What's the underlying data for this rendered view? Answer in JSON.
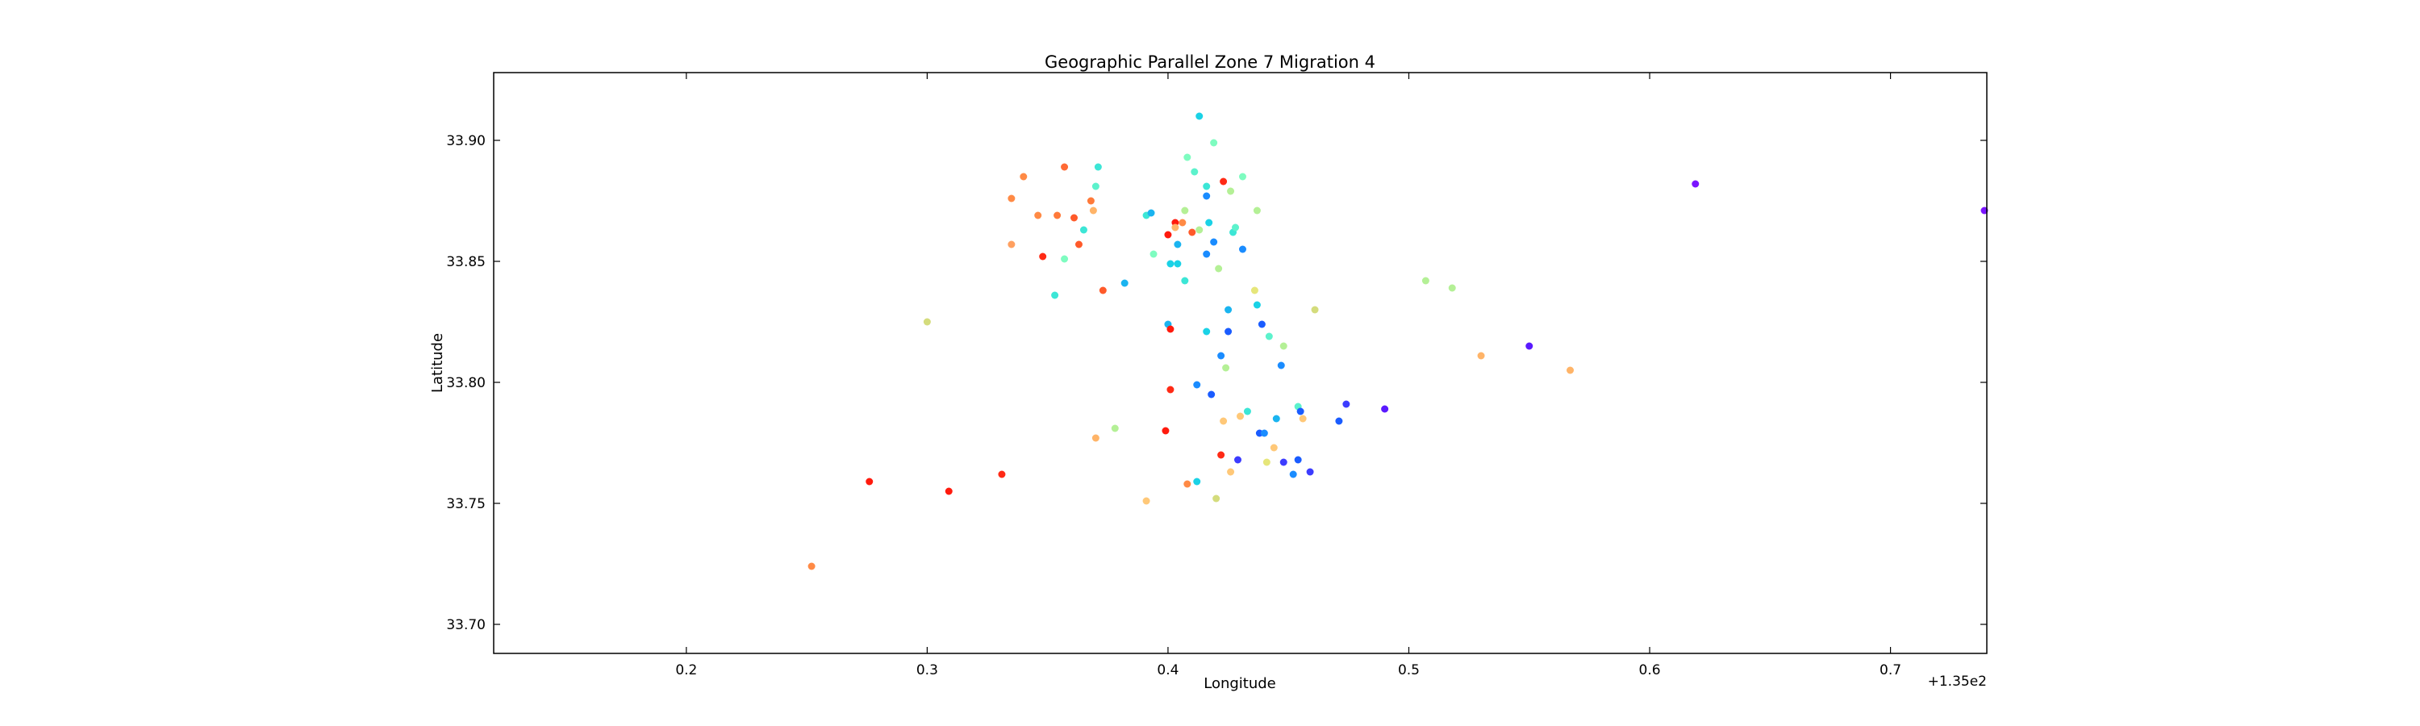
{
  "chart_data": {
    "type": "scatter",
    "title": "Geographic Parallel Zone 7 Migration 4",
    "xlabel": "Longitude",
    "ylabel": "Latitude",
    "x_offset_label": "+1.35e2",
    "xlim": [
      135.12,
      135.74
    ],
    "ylim": [
      33.688,
      33.928
    ],
    "x_ticks": [
      0.2,
      0.3,
      0.4,
      0.5,
      0.6,
      0.7
    ],
    "x_tick_labels": [
      "0.2",
      "0.3",
      "0.4",
      "0.5",
      "0.6",
      "0.7"
    ],
    "y_ticks": [
      33.7,
      33.75,
      33.8,
      33.85,
      33.9
    ],
    "y_tick_labels": [
      "33.70",
      "33.75",
      "33.80",
      "33.85",
      "33.90"
    ],
    "grid": false,
    "colormap": "rainbow",
    "points": [
      {
        "x": 135.252,
        "y": 33.724,
        "color": "#ff8a45"
      },
      {
        "x": 135.276,
        "y": 33.759,
        "color": "#ff1a0d"
      },
      {
        "x": 135.309,
        "y": 33.755,
        "color": "#ff1a0d"
      },
      {
        "x": 135.331,
        "y": 33.762,
        "color": "#ff2a15"
      },
      {
        "x": 135.3,
        "y": 33.825,
        "color": "#d4dc7c"
      },
      {
        "x": 135.335,
        "y": 33.876,
        "color": "#ff8a45"
      },
      {
        "x": 135.335,
        "y": 33.857,
        "color": "#ffa060"
      },
      {
        "x": 135.34,
        "y": 33.885,
        "color": "#ff8a45"
      },
      {
        "x": 135.346,
        "y": 33.869,
        "color": "#ff8a45"
      },
      {
        "x": 135.348,
        "y": 33.852,
        "color": "#ff2a15"
      },
      {
        "x": 135.353,
        "y": 33.836,
        "color": "#3ce6d6"
      },
      {
        "x": 135.354,
        "y": 33.869,
        "color": "#ff7a3a"
      },
      {
        "x": 135.357,
        "y": 33.889,
        "color": "#ff6a35"
      },
      {
        "x": 135.357,
        "y": 33.851,
        "color": "#7efcc0"
      },
      {
        "x": 135.361,
        "y": 33.868,
        "color": "#ff5a2a"
      },
      {
        "x": 135.363,
        "y": 33.857,
        "color": "#ff5a2a"
      },
      {
        "x": 135.365,
        "y": 33.863,
        "color": "#3ce6d6"
      },
      {
        "x": 135.368,
        "y": 33.875,
        "color": "#ff7a3a"
      },
      {
        "x": 135.369,
        "y": 33.871,
        "color": "#ffb468"
      },
      {
        "x": 135.37,
        "y": 33.881,
        "color": "#5cf2cc"
      },
      {
        "x": 135.371,
        "y": 33.889,
        "color": "#3ce6d6"
      },
      {
        "x": 135.373,
        "y": 33.838,
        "color": "#ff5a2a"
      },
      {
        "x": 135.37,
        "y": 33.777,
        "color": "#ffb468"
      },
      {
        "x": 135.378,
        "y": 33.781,
        "color": "#b4f096"
      },
      {
        "x": 135.382,
        "y": 33.841,
        "color": "#1ab4f0"
      },
      {
        "x": 135.391,
        "y": 33.869,
        "color": "#3ce6d6"
      },
      {
        "x": 135.393,
        "y": 33.87,
        "color": "#1ab4f0"
      },
      {
        "x": 135.394,
        "y": 33.853,
        "color": "#7efcc0"
      },
      {
        "x": 135.391,
        "y": 33.751,
        "color": "#ffc878"
      },
      {
        "x": 135.399,
        "y": 33.78,
        "color": "#ff1a0d"
      },
      {
        "x": 135.4,
        "y": 33.824,
        "color": "#1ab4f0"
      },
      {
        "x": 135.4,
        "y": 33.861,
        "color": "#ff1a0d"
      },
      {
        "x": 135.401,
        "y": 33.822,
        "color": "#ff1a0d"
      },
      {
        "x": 135.401,
        "y": 33.849,
        "color": "#1ad2e6"
      },
      {
        "x": 135.401,
        "y": 33.797,
        "color": "#ff2a15"
      },
      {
        "x": 135.403,
        "y": 33.866,
        "color": "#ff1a0d"
      },
      {
        "x": 135.403,
        "y": 33.864,
        "color": "#ffb468"
      },
      {
        "x": 135.404,
        "y": 33.857,
        "color": "#1ab4f0"
      },
      {
        "x": 135.404,
        "y": 33.849,
        "color": "#1ad2e6"
      },
      {
        "x": 135.406,
        "y": 33.866,
        "color": "#ff8a45"
      },
      {
        "x": 135.407,
        "y": 33.842,
        "color": "#3ce6d6"
      },
      {
        "x": 135.407,
        "y": 33.871,
        "color": "#b4f096"
      },
      {
        "x": 135.408,
        "y": 33.893,
        "color": "#7efcc0"
      },
      {
        "x": 135.408,
        "y": 33.758,
        "color": "#ff8a45"
      },
      {
        "x": 135.41,
        "y": 33.862,
        "color": "#ff5a2a"
      },
      {
        "x": 135.411,
        "y": 33.887,
        "color": "#5cf2cc"
      },
      {
        "x": 135.412,
        "y": 33.799,
        "color": "#1a8cff"
      },
      {
        "x": 135.413,
        "y": 33.91,
        "color": "#1ad2e6"
      },
      {
        "x": 135.412,
        "y": 33.759,
        "color": "#1ad2e6"
      },
      {
        "x": 135.413,
        "y": 33.863,
        "color": "#b4f096"
      },
      {
        "x": 135.416,
        "y": 33.881,
        "color": "#3ce6d6"
      },
      {
        "x": 135.416,
        "y": 33.877,
        "color": "#1a8cff"
      },
      {
        "x": 135.416,
        "y": 33.853,
        "color": "#1a8cff"
      },
      {
        "x": 135.416,
        "y": 33.821,
        "color": "#1ad2e6"
      },
      {
        "x": 135.417,
        "y": 33.866,
        "color": "#1ad2e6"
      },
      {
        "x": 135.418,
        "y": 33.795,
        "color": "#1a5cff"
      },
      {
        "x": 135.419,
        "y": 33.899,
        "color": "#7efcc0"
      },
      {
        "x": 135.419,
        "y": 33.858,
        "color": "#1a8cff"
      },
      {
        "x": 135.42,
        "y": 33.752,
        "color": "#d4dc7c"
      },
      {
        "x": 135.421,
        "y": 33.847,
        "color": "#b4f096"
      },
      {
        "x": 135.422,
        "y": 33.811,
        "color": "#1a8cff"
      },
      {
        "x": 135.422,
        "y": 33.77,
        "color": "#ff2a15"
      },
      {
        "x": 135.423,
        "y": 33.784,
        "color": "#ffc878"
      },
      {
        "x": 135.423,
        "y": 33.883,
        "color": "#ff2a15"
      },
      {
        "x": 135.424,
        "y": 33.806,
        "color": "#b4f096"
      },
      {
        "x": 135.425,
        "y": 33.83,
        "color": "#1ab4f0"
      },
      {
        "x": 135.425,
        "y": 33.821,
        "color": "#1a5cff"
      },
      {
        "x": 135.426,
        "y": 33.879,
        "color": "#b4f096"
      },
      {
        "x": 135.426,
        "y": 33.763,
        "color": "#ffc878"
      },
      {
        "x": 135.427,
        "y": 33.862,
        "color": "#3ce6d6"
      },
      {
        "x": 135.428,
        "y": 33.864,
        "color": "#5cf2cc"
      },
      {
        "x": 135.429,
        "y": 33.768,
        "color": "#3c3cff"
      },
      {
        "x": 135.43,
        "y": 33.786,
        "color": "#ffc878"
      },
      {
        "x": 135.431,
        "y": 33.885,
        "color": "#7efcc0"
      },
      {
        "x": 135.431,
        "y": 33.855,
        "color": "#1a8cff"
      },
      {
        "x": 135.433,
        "y": 33.788,
        "color": "#3ce6d6"
      },
      {
        "x": 135.436,
        "y": 33.838,
        "color": "#e6e67a"
      },
      {
        "x": 135.437,
        "y": 33.871,
        "color": "#b4f096"
      },
      {
        "x": 135.437,
        "y": 33.832,
        "color": "#1ad2e6"
      },
      {
        "x": 135.438,
        "y": 33.779,
        "color": "#1a5cff"
      },
      {
        "x": 135.439,
        "y": 33.824,
        "color": "#1a5cff"
      },
      {
        "x": 135.44,
        "y": 33.779,
        "color": "#1a8cff"
      },
      {
        "x": 135.441,
        "y": 33.767,
        "color": "#e6e67a"
      },
      {
        "x": 135.442,
        "y": 33.819,
        "color": "#5cf2cc"
      },
      {
        "x": 135.444,
        "y": 33.773,
        "color": "#ffc878"
      },
      {
        "x": 135.445,
        "y": 33.785,
        "color": "#1ab4f0"
      },
      {
        "x": 135.447,
        "y": 33.807,
        "color": "#1a8cff"
      },
      {
        "x": 135.448,
        "y": 33.815,
        "color": "#b4f096"
      },
      {
        "x": 135.448,
        "y": 33.767,
        "color": "#3c3cff"
      },
      {
        "x": 135.452,
        "y": 33.762,
        "color": "#1a8cff"
      },
      {
        "x": 135.454,
        "y": 33.768,
        "color": "#1a5cff"
      },
      {
        "x": 135.454,
        "y": 33.79,
        "color": "#5cf2cc"
      },
      {
        "x": 135.455,
        "y": 33.788,
        "color": "#1a5cff"
      },
      {
        "x": 135.456,
        "y": 33.785,
        "color": "#ffc878"
      },
      {
        "x": 135.459,
        "y": 33.763,
        "color": "#3c3cff"
      },
      {
        "x": 135.461,
        "y": 33.83,
        "color": "#d4dc7c"
      },
      {
        "x": 135.471,
        "y": 33.784,
        "color": "#1a5cff"
      },
      {
        "x": 135.474,
        "y": 33.791,
        "color": "#3c3cff"
      },
      {
        "x": 135.49,
        "y": 33.789,
        "color": "#5a1aff"
      },
      {
        "x": 135.507,
        "y": 33.842,
        "color": "#b4f096"
      },
      {
        "x": 135.518,
        "y": 33.839,
        "color": "#b4f096"
      },
      {
        "x": 135.53,
        "y": 33.811,
        "color": "#ffb468"
      },
      {
        "x": 135.55,
        "y": 33.815,
        "color": "#5a1aff"
      },
      {
        "x": 135.567,
        "y": 33.805,
        "color": "#ffb468"
      },
      {
        "x": 135.619,
        "y": 33.882,
        "color": "#7a14ff"
      },
      {
        "x": 135.739,
        "y": 33.871,
        "color": "#7a14ff"
      }
    ]
  }
}
